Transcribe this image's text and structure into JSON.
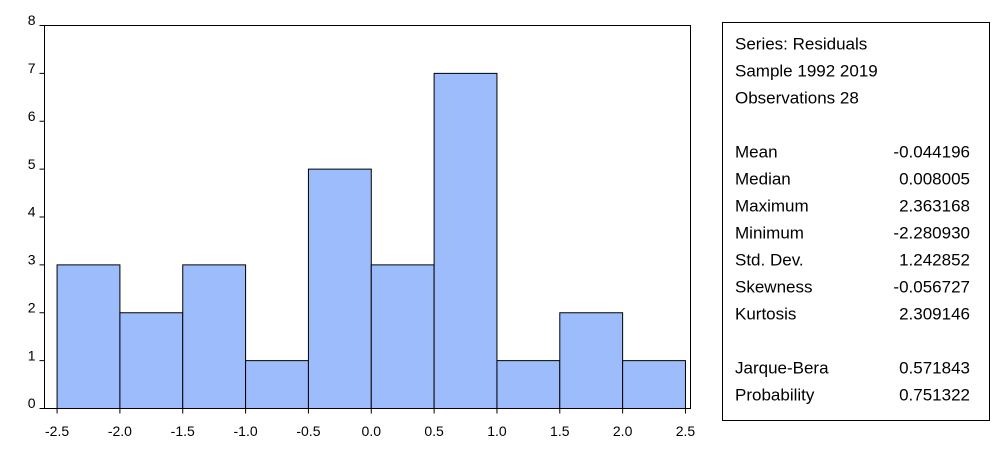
{
  "chart_data": {
    "type": "histogram",
    "bins": [
      -2.5,
      -2.0,
      -1.5,
      -1.0,
      -0.5,
      0.0,
      0.5,
      1.0,
      1.5,
      2.0,
      2.5
    ],
    "values": [
      3,
      2,
      3,
      1,
      5,
      3,
      7,
      1,
      2,
      1
    ],
    "color": "#9cbcfc",
    "xlim": [
      -2.6,
      2.54
    ],
    "ylim": [
      0,
      8
    ],
    "xticks": [
      -2.5,
      {
        "value": -2.0,
        "label": "-2.0"
      },
      -1.5,
      {
        "value": -1.0,
        "label": "-1.0"
      },
      -0.5,
      {
        "value": 0.0,
        "label": "0.0"
      },
      0.5,
      {
        "value": 1.0,
        "label": "1.0"
      },
      1.5,
      {
        "value": 2.0,
        "label": "2.0"
      },
      2.5
    ],
    "yticks": [
      0,
      1,
      2,
      3,
      4,
      5,
      6,
      7,
      8
    ]
  },
  "stats": {
    "lines": [
      "Series: Residuals",
      "Sample 1992 2019",
      "Observations 28"
    ],
    "rows": [
      [
        "Mean",
        "-0.044196"
      ],
      [
        "Median",
        "0.008005"
      ],
      [
        "Maximum",
        "2.363168"
      ],
      [
        "Minimum",
        "-2.280930"
      ],
      [
        "Std. Dev.",
        "1.242852"
      ],
      [
        "Skewness",
        "-0.056727"
      ],
      [
        "Kurtosis",
        "2.309146"
      ],
      [
        "Jarque-Bera",
        "0.571843"
      ],
      [
        "Probability",
        "0.751322"
      ]
    ]
  }
}
